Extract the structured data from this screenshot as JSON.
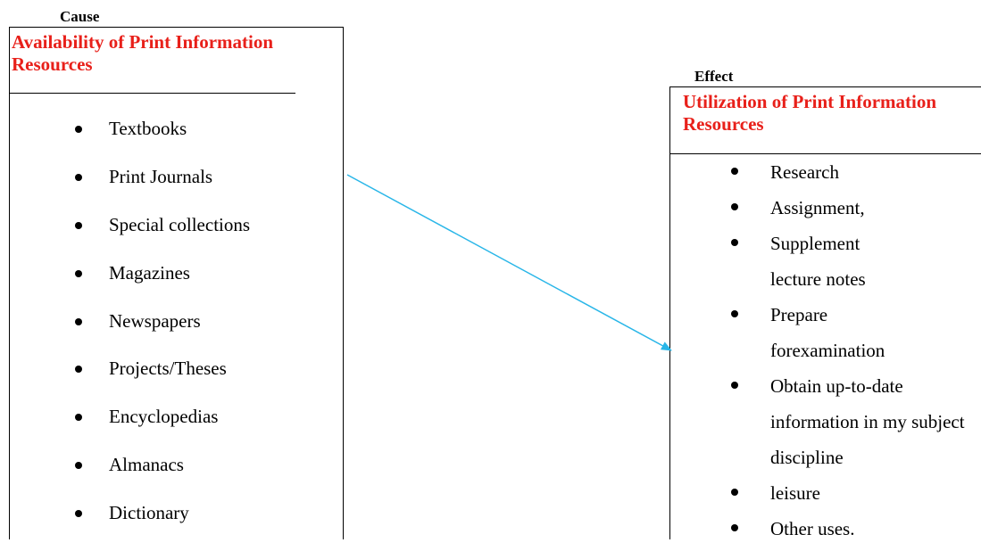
{
  "cause": {
    "label": "Cause",
    "title": "Availability of Print Information Resources",
    "items": [
      "Textbooks",
      "Print Journals",
      "Special collections",
      "Magazines",
      "Newspapers",
      "Projects/Theses",
      "Encyclopedias",
      "Almanacs",
      "Dictionary"
    ]
  },
  "effect": {
    "label": "Effect",
    "title": "Utilization of Print Information Resources",
    "items": [
      "Research",
      "Assignment,",
      "Supplement lecture notes",
      "Prepare forexamination",
      "Obtain up-to-date information in my subject discipline",
      "leisure",
      "Other uses."
    ]
  },
  "colors": {
    "title_text": "#e8201a",
    "arrow": "#29b6e8"
  }
}
